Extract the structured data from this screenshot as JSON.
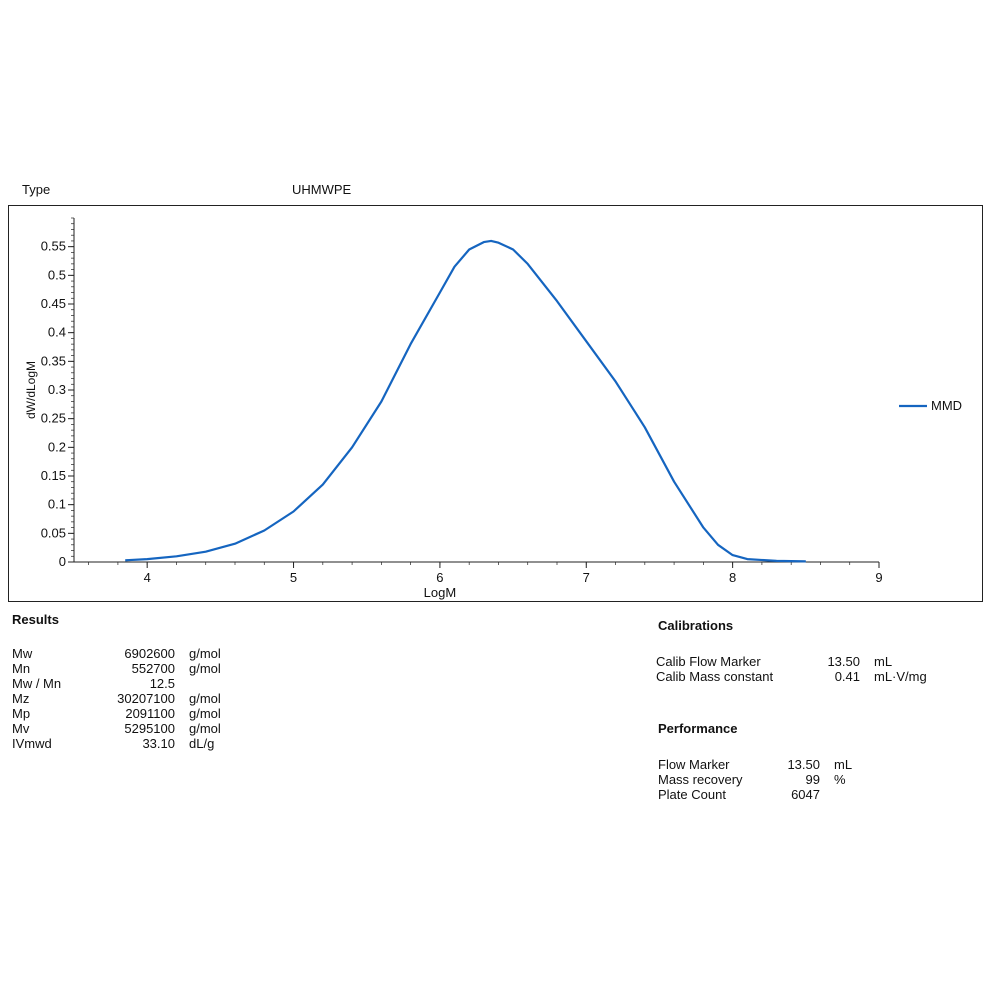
{
  "header": {
    "type_label": "Type",
    "type_value": "UHMWPE"
  },
  "chart_data": {
    "type": "line",
    "xlabel": "LogM",
    "ylabel": "dW/dLogM",
    "xlim": [
      3.5,
      9
    ],
    "ylim": [
      0,
      0.6
    ],
    "x_ticks": [
      "4",
      "5",
      "6",
      "7",
      "8",
      "9"
    ],
    "y_ticks": [
      "0",
      "0.05",
      "0.1",
      "0.15",
      "0.2",
      "0.25",
      "0.3",
      "0.35",
      "0.4",
      "0.45",
      "0.5",
      "0.55"
    ],
    "grid": false,
    "legend_position": "right",
    "series": [
      {
        "name": "MMD",
        "color": "#1565c0",
        "x": [
          3.85,
          4.0,
          4.2,
          4.4,
          4.6,
          4.8,
          5.0,
          5.2,
          5.4,
          5.6,
          5.8,
          6.0,
          6.1,
          6.2,
          6.3,
          6.35,
          6.4,
          6.5,
          6.6,
          6.8,
          7.0,
          7.2,
          7.4,
          7.6,
          7.8,
          7.9,
          8.0,
          8.1,
          8.3,
          8.5
        ],
        "y": [
          0.003,
          0.005,
          0.01,
          0.018,
          0.032,
          0.055,
          0.088,
          0.135,
          0.2,
          0.28,
          0.38,
          0.47,
          0.515,
          0.545,
          0.558,
          0.56,
          0.557,
          0.545,
          0.52,
          0.455,
          0.385,
          0.315,
          0.235,
          0.14,
          0.06,
          0.03,
          0.012,
          0.005,
          0.002,
          0.001
        ]
      }
    ]
  },
  "results": {
    "title": "Results",
    "rows": [
      {
        "name": "Mw",
        "value": "6902600",
        "unit": "g/mol"
      },
      {
        "name": "Mn",
        "value": "552700",
        "unit": "g/mol"
      },
      {
        "name": "Mw / Mn",
        "value": "12.5",
        "unit": ""
      },
      {
        "name": "Mz",
        "value": "30207100",
        "unit": "g/mol"
      },
      {
        "name": "Mp",
        "value": "2091100",
        "unit": "g/mol"
      },
      {
        "name": "Mv",
        "value": "5295100",
        "unit": "g/mol"
      },
      {
        "name": "IVmwd",
        "value": "33.10",
        "unit": "dL/g"
      }
    ]
  },
  "calibrations": {
    "title": "Calibrations",
    "rows": [
      {
        "name": "Calib Flow Marker",
        "value": "13.50",
        "unit": "mL"
      },
      {
        "name": "Calib Mass constant",
        "value": "0.41",
        "unit": "mL·V/mg"
      }
    ]
  },
  "performance": {
    "title": "Performance",
    "rows": [
      {
        "name": "Flow Marker",
        "value": "13.50",
        "unit": "mL"
      },
      {
        "name": "Mass recovery",
        "value": "99",
        "unit": "%"
      },
      {
        "name": "Plate Count",
        "value": "6047",
        "unit": ""
      }
    ]
  }
}
